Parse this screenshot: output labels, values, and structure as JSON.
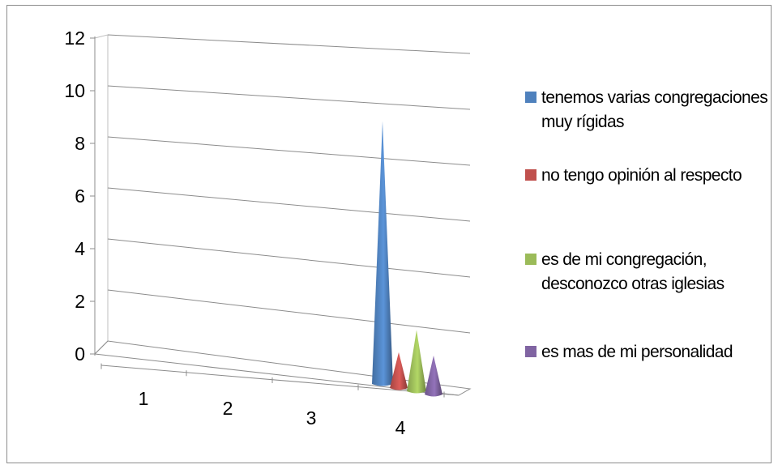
{
  "chart_data": {
    "type": "bar",
    "style": "3d-cone",
    "categories": [
      "1",
      "2",
      "3",
      "4"
    ],
    "series": [
      {
        "name": "tenemos varias congregaciones muy rígidas",
        "color": "#4f81bd",
        "values": [
          0,
          0,
          0,
          10
        ]
      },
      {
        "name": "no tengo opinión al respecto",
        "color": "#c0504d",
        "values": [
          0,
          0,
          0,
          1
        ]
      },
      {
        "name": "es de mi congregación, desconozco otras iglesias",
        "color": "#9bbb59",
        "values": [
          0,
          0,
          0,
          2
        ]
      },
      {
        "name": "es mas de mi personalidad",
        "color": "#8064a2",
        "values": [
          0,
          0,
          0,
          0
        ]
      }
    ],
    "yticks": [
      "0",
      "2",
      "4",
      "6",
      "8",
      "10",
      "12"
    ],
    "ylim": [
      0,
      12
    ],
    "title": "",
    "xlabel": "",
    "ylabel": "",
    "grid": true,
    "legend": "right"
  }
}
